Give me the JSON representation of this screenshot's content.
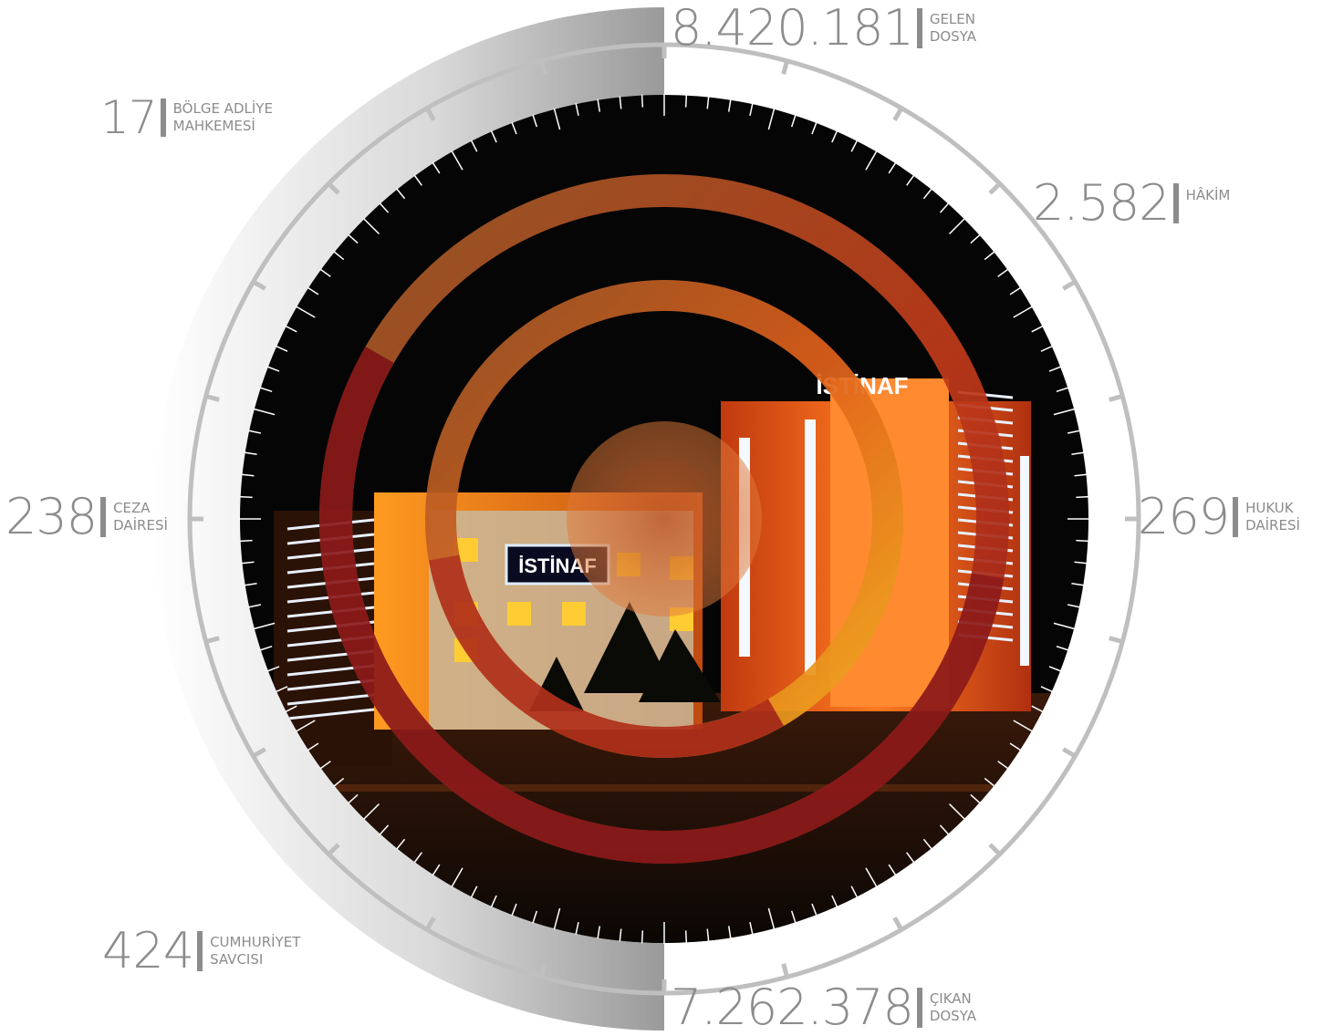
{
  "stats": {
    "gelen": {
      "value": "8.420.181",
      "label_1": "GELEN",
      "label_2": "DOSYA"
    },
    "hakim": {
      "value": "2.582",
      "label_1": "HÂKİM"
    },
    "hukuk": {
      "value": "269",
      "label_1": "HUKUK",
      "label_2": "DAİRESİ"
    },
    "cikan": {
      "value": "7.262.378",
      "label_1": "ÇIKAN",
      "label_2": "DOSYA"
    },
    "cumhuriyet": {
      "value": "424",
      "label_1": "CUMHURİYET",
      "label_2": "SAVCISI"
    },
    "ceza": {
      "value": "238",
      "label_1": "CEZA",
      "label_2": "DAİRESİ"
    },
    "bolge": {
      "value": "17",
      "label_1": "BÖLGE ADLİYE",
      "label_2": "MAHKEMESİ"
    }
  },
  "photo": {
    "sign_building": "İSTİNAF",
    "sign_tower": "İSTİNAF"
  },
  "colors": {
    "stat_text": "#8c8c8c",
    "dial_ring": "#bfbfbf",
    "ring_dark_red": "#8c1a1a",
    "ring_brown": "#a0602a",
    "ring_orange": "#d9521a",
    "ring_yellow": "#f0b020",
    "night_sky": "#050505"
  }
}
